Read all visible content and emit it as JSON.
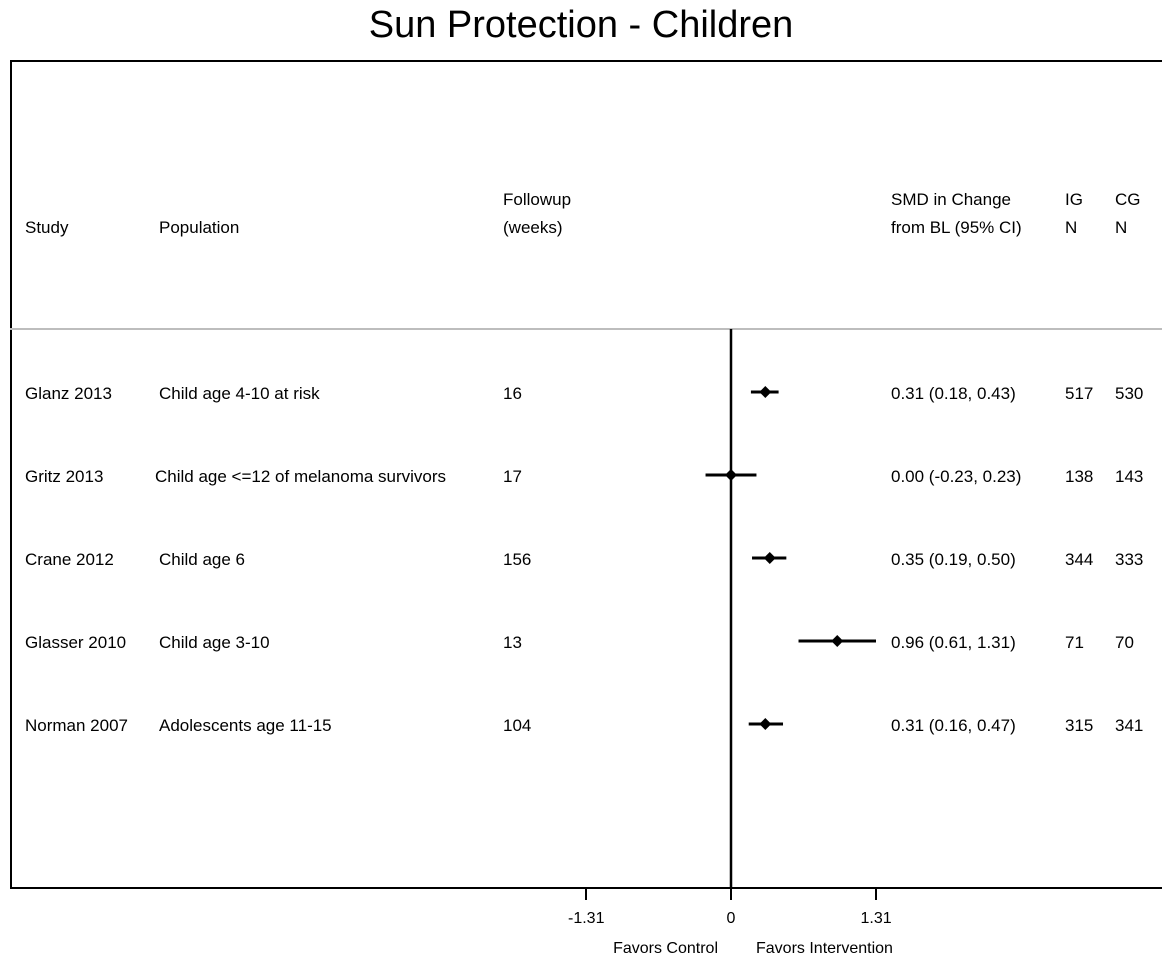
{
  "chart_data": {
    "type": "forest",
    "title": "Sun Protection - Children",
    "columns": {
      "study": "Study",
      "population": "Population",
      "followup": [
        "Followup",
        "(weeks)"
      ],
      "effect": [
        "SMD in Change",
        "from BL (95% CI)"
      ],
      "ig": [
        "IG",
        "N"
      ],
      "cg": [
        "CG",
        "N"
      ]
    },
    "rows": [
      {
        "study": "Glanz 2013",
        "population": "Child age 4-10 at risk",
        "followup": "16",
        "smd": 0.31,
        "lo": 0.18,
        "hi": 0.43,
        "ci_text": "0.31 (0.18, 0.43)",
        "ig_n": "517",
        "cg_n": "530"
      },
      {
        "study": "Gritz 2013",
        "population": "Child age <=12 of melanoma survivors",
        "followup": "17",
        "smd": 0.0,
        "lo": -0.23,
        "hi": 0.23,
        "ci_text": "0.00 (-0.23, 0.23)",
        "ig_n": "138",
        "cg_n": "143"
      },
      {
        "study": "Crane 2012",
        "population": "Child age 6",
        "followup": "156",
        "smd": 0.35,
        "lo": 0.19,
        "hi": 0.5,
        "ci_text": "0.35 (0.19, 0.50)",
        "ig_n": "344",
        "cg_n": "333"
      },
      {
        "study": "Glasser 2010",
        "population": "Child age 3-10",
        "followup": "13",
        "smd": 0.96,
        "lo": 0.61,
        "hi": 1.31,
        "ci_text": "0.96 (0.61, 1.31)",
        "ig_n": "71",
        "cg_n": "70"
      },
      {
        "study": "Norman 2007",
        "population": "Adolescents age 11-15",
        "followup": "104",
        "smd": 0.31,
        "lo": 0.16,
        "hi": 0.47,
        "ci_text": "0.31 (0.16, 0.47)",
        "ig_n": "315",
        "cg_n": "341"
      }
    ],
    "x_ticks": [
      {
        "value": -1.31,
        "label": "-1.31"
      },
      {
        "value": 0,
        "label": "0"
      },
      {
        "value": 1.31,
        "label": "1.31"
      }
    ],
    "xlim": [
      -1.31,
      1.31
    ],
    "x_labels": {
      "left": "Favors Control",
      "right": "Favors Intervention"
    }
  }
}
